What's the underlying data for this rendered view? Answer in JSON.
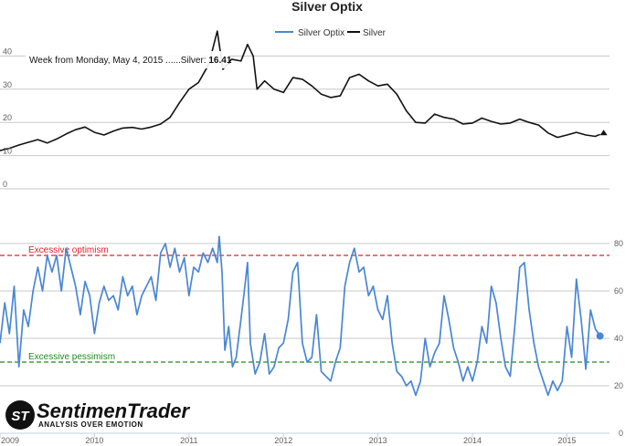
{
  "chart_data": {
    "type": "line",
    "title": "Silver Optix",
    "legend": {
      "position": "top-right",
      "items": [
        {
          "name": "Silver Optix",
          "color": "#4a86d4"
        },
        {
          "name": "Silver",
          "color": "#111111"
        }
      ]
    },
    "tooltip": {
      "prefix": "Week from Monday, May 4, 2015 ......Silver: ",
      "value": "16.41"
    },
    "x_axis": {
      "range": [
        2009.0,
        2015.45
      ],
      "ticks": [
        {
          "value": 2009,
          "label": "2009"
        },
        {
          "value": 2010,
          "label": "2010"
        },
        {
          "value": 2011,
          "label": "2011"
        },
        {
          "value": 2012,
          "label": "2012"
        },
        {
          "value": 2013,
          "label": "2013"
        },
        {
          "value": 2014,
          "label": "2014"
        },
        {
          "value": 2015,
          "label": "2015"
        }
      ]
    },
    "upper_axis": {
      "side": "left",
      "range": [
        0,
        50
      ],
      "ticks": [
        {
          "value": 0,
          "label": "0"
        },
        {
          "value": 10,
          "label": "10"
        },
        {
          "value": 20,
          "label": "20"
        },
        {
          "value": 30,
          "label": "30"
        },
        {
          "value": 40,
          "label": "40"
        }
      ]
    },
    "lower_axis": {
      "side": "right",
      "range": [
        0,
        100
      ],
      "ticks": [
        {
          "value": 0,
          "label": "0"
        },
        {
          "value": 20,
          "label": "20"
        },
        {
          "value": 40,
          "label": "40"
        },
        {
          "value": 60,
          "label": "60"
        },
        {
          "value": 80,
          "label": "80"
        }
      ]
    },
    "reference_lines": [
      {
        "value": 75,
        "label": "Excessive optimism",
        "color": "#e0202a"
      },
      {
        "value": 30,
        "label": "Excessive pessimism",
        "color": "#1e8a1e"
      }
    ],
    "series": [
      {
        "name": "Silver",
        "color": "#111111",
        "panel": "upper",
        "points": [
          [
            2009.0,
            11.5
          ],
          [
            2009.1,
            12.2
          ],
          [
            2009.2,
            13.2
          ],
          [
            2009.3,
            14.0
          ],
          [
            2009.4,
            14.8
          ],
          [
            2009.5,
            13.8
          ],
          [
            2009.6,
            15.0
          ],
          [
            2009.7,
            16.5
          ],
          [
            2009.8,
            17.8
          ],
          [
            2009.9,
            18.6
          ],
          [
            2010.0,
            17.0
          ],
          [
            2010.1,
            16.2
          ],
          [
            2010.2,
            17.4
          ],
          [
            2010.3,
            18.3
          ],
          [
            2010.4,
            18.5
          ],
          [
            2010.5,
            18.0
          ],
          [
            2010.6,
            18.6
          ],
          [
            2010.7,
            19.5
          ],
          [
            2010.8,
            21.5
          ],
          [
            2010.9,
            26.0
          ],
          [
            2011.0,
            30.0
          ],
          [
            2011.1,
            32.0
          ],
          [
            2011.2,
            37.0
          ],
          [
            2011.25,
            42.0
          ],
          [
            2011.3,
            47.5
          ],
          [
            2011.36,
            36.0
          ],
          [
            2011.45,
            39.0
          ],
          [
            2011.55,
            38.5
          ],
          [
            2011.62,
            43.5
          ],
          [
            2011.68,
            40.0
          ],
          [
            2011.72,
            30.0
          ],
          [
            2011.8,
            32.5
          ],
          [
            2011.9,
            30.0
          ],
          [
            2012.0,
            29.0
          ],
          [
            2012.1,
            33.5
          ],
          [
            2012.2,
            33.0
          ],
          [
            2012.3,
            31.0
          ],
          [
            2012.4,
            28.5
          ],
          [
            2012.5,
            27.5
          ],
          [
            2012.6,
            28.0
          ],
          [
            2012.7,
            33.5
          ],
          [
            2012.8,
            34.5
          ],
          [
            2012.9,
            32.5
          ],
          [
            2013.0,
            31.0
          ],
          [
            2013.1,
            31.5
          ],
          [
            2013.2,
            28.5
          ],
          [
            2013.3,
            23.5
          ],
          [
            2013.4,
            20.0
          ],
          [
            2013.5,
            19.8
          ],
          [
            2013.6,
            22.5
          ],
          [
            2013.7,
            21.5
          ],
          [
            2013.8,
            21.0
          ],
          [
            2013.9,
            19.5
          ],
          [
            2014.0,
            19.8
          ],
          [
            2014.1,
            21.3
          ],
          [
            2014.2,
            20.3
          ],
          [
            2014.3,
            19.5
          ],
          [
            2014.4,
            19.8
          ],
          [
            2014.5,
            21.0
          ],
          [
            2014.6,
            20.0
          ],
          [
            2014.7,
            19.2
          ],
          [
            2014.8,
            16.8
          ],
          [
            2014.9,
            15.5
          ],
          [
            2015.0,
            16.2
          ],
          [
            2015.1,
            17.0
          ],
          [
            2015.2,
            16.2
          ],
          [
            2015.3,
            15.8
          ],
          [
            2015.35,
            16.41
          ]
        ]
      },
      {
        "name": "Silver Optix",
        "color": "#4a86d4",
        "panel": "lower",
        "points": [
          [
            2009.0,
            38
          ],
          [
            2009.05,
            55
          ],
          [
            2009.1,
            42
          ],
          [
            2009.15,
            62
          ],
          [
            2009.2,
            28
          ],
          [
            2009.25,
            52
          ],
          [
            2009.3,
            45
          ],
          [
            2009.35,
            60
          ],
          [
            2009.4,
            70
          ],
          [
            2009.45,
            60
          ],
          [
            2009.5,
            75
          ],
          [
            2009.55,
            68
          ],
          [
            2009.6,
            75
          ],
          [
            2009.65,
            60
          ],
          [
            2009.7,
            78
          ],
          [
            2009.75,
            70
          ],
          [
            2009.8,
            62
          ],
          [
            2009.85,
            50
          ],
          [
            2009.9,
            64
          ],
          [
            2009.95,
            58
          ],
          [
            2010.0,
            42
          ],
          [
            2010.05,
            55
          ],
          [
            2010.1,
            62
          ],
          [
            2010.15,
            56
          ],
          [
            2010.2,
            58
          ],
          [
            2010.25,
            52
          ],
          [
            2010.3,
            66
          ],
          [
            2010.35,
            58
          ],
          [
            2010.4,
            62
          ],
          [
            2010.45,
            50
          ],
          [
            2010.5,
            58
          ],
          [
            2010.55,
            62
          ],
          [
            2010.6,
            66
          ],
          [
            2010.65,
            56
          ],
          [
            2010.7,
            76
          ],
          [
            2010.75,
            80
          ],
          [
            2010.8,
            70
          ],
          [
            2010.85,
            78
          ],
          [
            2010.9,
            68
          ],
          [
            2010.95,
            74
          ],
          [
            2011.0,
            58
          ],
          [
            2011.05,
            70
          ],
          [
            2011.1,
            68
          ],
          [
            2011.15,
            76
          ],
          [
            2011.2,
            72
          ],
          [
            2011.25,
            78
          ],
          [
            2011.3,
            72
          ],
          [
            2011.32,
            83
          ],
          [
            2011.35,
            68
          ],
          [
            2011.38,
            35
          ],
          [
            2011.42,
            45
          ],
          [
            2011.46,
            28
          ],
          [
            2011.5,
            32
          ],
          [
            2011.55,
            48
          ],
          [
            2011.58,
            58
          ],
          [
            2011.62,
            72
          ],
          [
            2011.65,
            38
          ],
          [
            2011.7,
            25
          ],
          [
            2011.75,
            30
          ],
          [
            2011.8,
            42
          ],
          [
            2011.85,
            25
          ],
          [
            2011.9,
            28
          ],
          [
            2011.95,
            36
          ],
          [
            2012.0,
            38
          ],
          [
            2012.05,
            48
          ],
          [
            2012.1,
            68
          ],
          [
            2012.15,
            72
          ],
          [
            2012.2,
            38
          ],
          [
            2012.25,
            30
          ],
          [
            2012.3,
            32
          ],
          [
            2012.35,
            50
          ],
          [
            2012.4,
            26
          ],
          [
            2012.45,
            24
          ],
          [
            2012.5,
            22
          ],
          [
            2012.55,
            30
          ],
          [
            2012.6,
            36
          ],
          [
            2012.65,
            62
          ],
          [
            2012.7,
            72
          ],
          [
            2012.75,
            78
          ],
          [
            2012.8,
            68
          ],
          [
            2012.85,
            70
          ],
          [
            2012.9,
            58
          ],
          [
            2012.95,
            62
          ],
          [
            2013.0,
            52
          ],
          [
            2013.05,
            48
          ],
          [
            2013.1,
            58
          ],
          [
            2013.15,
            38
          ],
          [
            2013.2,
            26
          ],
          [
            2013.25,
            24
          ],
          [
            2013.3,
            20
          ],
          [
            2013.35,
            22
          ],
          [
            2013.4,
            16
          ],
          [
            2013.45,
            22
          ],
          [
            2013.5,
            40
          ],
          [
            2013.55,
            28
          ],
          [
            2013.6,
            34
          ],
          [
            2013.65,
            38
          ],
          [
            2013.7,
            58
          ],
          [
            2013.75,
            48
          ],
          [
            2013.8,
            36
          ],
          [
            2013.85,
            30
          ],
          [
            2013.9,
            22
          ],
          [
            2013.95,
            28
          ],
          [
            2014.0,
            22
          ],
          [
            2014.05,
            30
          ],
          [
            2014.1,
            45
          ],
          [
            2014.15,
            38
          ],
          [
            2014.2,
            62
          ],
          [
            2014.25,
            55
          ],
          [
            2014.3,
            40
          ],
          [
            2014.35,
            28
          ],
          [
            2014.4,
            24
          ],
          [
            2014.45,
            46
          ],
          [
            2014.5,
            70
          ],
          [
            2014.55,
            72
          ],
          [
            2014.6,
            52
          ],
          [
            2014.65,
            38
          ],
          [
            2014.7,
            28
          ],
          [
            2014.75,
            22
          ],
          [
            2014.8,
            16
          ],
          [
            2014.85,
            22
          ],
          [
            2014.9,
            18
          ],
          [
            2014.95,
            22
          ],
          [
            2015.0,
            45
          ],
          [
            2015.05,
            32
          ],
          [
            2015.1,
            65
          ],
          [
            2015.15,
            48
          ],
          [
            2015.2,
            27
          ],
          [
            2015.25,
            52
          ],
          [
            2015.3,
            44
          ],
          [
            2015.35,
            41
          ]
        ]
      }
    ]
  },
  "logo": {
    "name": "SentimenTrader",
    "tagline": "ANALYSIS OVER EMOTION",
    "badge": "ST"
  },
  "colors": {
    "grid": "#c8c8c8",
    "axis": "#c0d0e0"
  }
}
